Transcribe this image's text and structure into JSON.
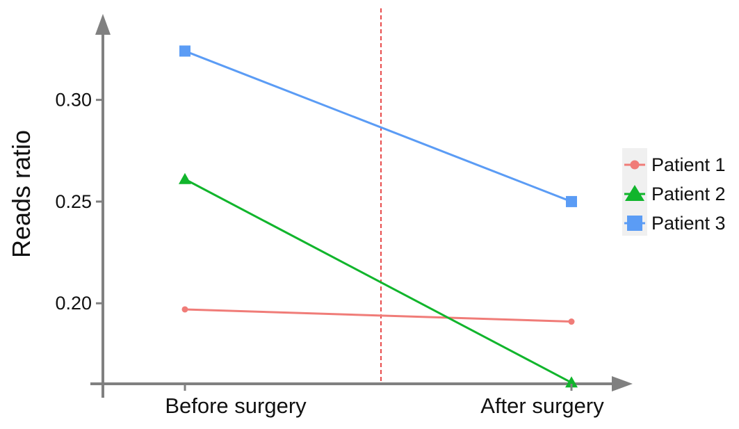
{
  "chart_data": {
    "type": "line",
    "categories": [
      "Before surgery",
      "After surgery"
    ],
    "series": [
      {
        "name": "Patient 1",
        "values": [
          0.197,
          0.191
        ],
        "color": "#F07C78",
        "marker": "circle"
      },
      {
        "name": "Patient 2",
        "values": [
          0.261,
          0.161
        ],
        "color": "#11B52C",
        "marker": "triangle"
      },
      {
        "name": "Patient 3",
        "values": [
          0.324,
          0.25
        ],
        "color": "#5B9CF5",
        "marker": "square"
      }
    ],
    "ylabel": "Reads ratio",
    "xlabel": "",
    "yticks": [
      "0.30",
      "0.25",
      "0.20"
    ],
    "ylim": [
      0.157,
      0.345
    ],
    "divider": {
      "between": [
        "Before surgery",
        "After surgery"
      ],
      "color": "#E84B4B",
      "style": "dashed"
    },
    "legend_position": "right",
    "grid": false,
    "axis_color": "#808080"
  }
}
